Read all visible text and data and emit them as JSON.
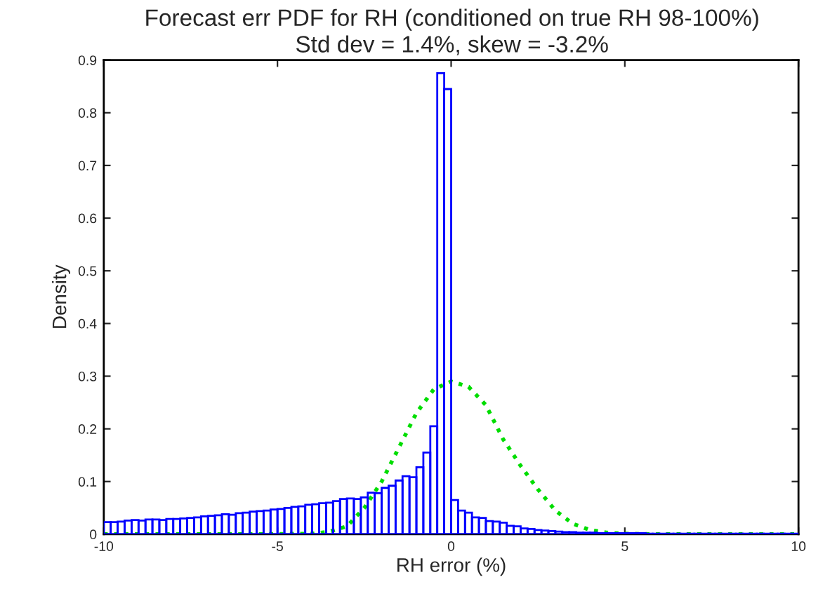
{
  "chart_data": {
    "type": "histogram",
    "title": "Forecast err PDF for RH (conditioned on true RH 98-100%)",
    "subtitle": "Std dev = 1.4%, skew = -3.2%",
    "xlabel": "RH error (%)",
    "ylabel": "Density",
    "bins": [
      -10,
      -9.8,
      -9.6,
      -9.4,
      -9.2,
      -9,
      -8.8,
      -8.6,
      -8.4,
      -8.2,
      -8,
      -7.8,
      -7.6,
      -7.4,
      -7.2,
      -7,
      -6.8,
      -6.6,
      -6.4,
      -6.2,
      -6,
      -5.8,
      -5.6,
      -5.4,
      -5.2,
      -5,
      -4.8,
      -4.6,
      -4.4,
      -4.2,
      -4,
      -3.8,
      -3.6,
      -3.4,
      -3.2,
      -3,
      -2.8,
      -2.6,
      -2.4,
      -2.2,
      -2,
      -1.8,
      -1.6,
      -1.4,
      -1.2,
      -1,
      -0.8,
      -0.6,
      -0.4,
      -0.2,
      0,
      0.2,
      0.4,
      0.6,
      0.8,
      1,
      1.2,
      1.4,
      1.6,
      1.8,
      2,
      2.2,
      2.4,
      2.6,
      2.8,
      3,
      3.2,
      3.4,
      3.6,
      3.8,
      4,
      4.2,
      4.4,
      4.6,
      4.8,
      5,
      5.2,
      5.4,
      5.6,
      5.8,
      6,
      6.2,
      6.4,
      6.6,
      6.8,
      7,
      7.2,
      7.4,
      7.6,
      7.8,
      8,
      8.2,
      8.4,
      8.6,
      8.8,
      9,
      9.2,
      9.4,
      9.6,
      9.8,
      10
    ],
    "values": [
      0.023,
      0.023,
      0.024,
      0.026,
      0.027,
      0.026,
      0.028,
      0.028,
      0.027,
      0.029,
      0.029,
      0.03,
      0.031,
      0.032,
      0.034,
      0.035,
      0.036,
      0.038,
      0.037,
      0.04,
      0.041,
      0.043,
      0.044,
      0.045,
      0.047,
      0.048,
      0.05,
      0.052,
      0.053,
      0.056,
      0.057,
      0.059,
      0.06,
      0.063,
      0.067,
      0.068,
      0.067,
      0.07,
      0.079,
      0.078,
      0.088,
      0.092,
      0.102,
      0.11,
      0.108,
      0.127,
      0.155,
      0.205,
      0.875,
      0.845,
      0.065,
      0.045,
      0.041,
      0.032,
      0.031,
      0.025,
      0.024,
      0.022,
      0.016,
      0.015,
      0.011,
      0.01,
      0.008,
      0.007,
      0.006,
      0.005,
      0.004,
      0.004,
      0.003,
      0.003,
      0.003,
      0.002,
      0.002,
      0.002,
      0.002,
      0.002,
      0.002,
      0.002,
      0.001,
      0.001,
      0.001,
      0.001,
      0.001,
      0.001,
      0.001,
      0.001,
      0.001,
      0.001,
      0.001,
      0.001,
      0.001,
      0.001,
      0.001,
      0.001,
      0.001,
      0.001,
      0.001,
      0.001,
      0.001,
      0.001
    ],
    "color": "#0000ff",
    "series": [
      {
        "type": "line",
        "color": "#00dd00",
        "line_style": "dotted",
        "x": [
          -10,
          -8,
          -6,
          -4,
          -3.5,
          -3,
          -2.5,
          -2,
          -1.5,
          -1,
          -0.5,
          0,
          0.5,
          1,
          1.5,
          2,
          2.5,
          3,
          3.5,
          4,
          4.5,
          5,
          6,
          8,
          10
        ],
        "values": [
          0,
          0,
          0,
          0.001,
          0.005,
          0.015,
          0.05,
          0.1,
          0.165,
          0.23,
          0.275,
          0.29,
          0.28,
          0.245,
          0.18,
          0.13,
          0.085,
          0.045,
          0.02,
          0.008,
          0.003,
          0.001,
          0,
          0,
          0
        ]
      }
    ],
    "xlim": [
      -10,
      10
    ],
    "ylim": [
      0,
      0.9
    ],
    "xticks": [
      -10,
      -5,
      0,
      5,
      10
    ],
    "yticks": [
      0,
      0.1,
      0.2,
      0.3,
      0.4,
      0.5,
      0.6,
      0.7,
      0.8,
      0.9
    ],
    "grid": false,
    "legend": false
  }
}
